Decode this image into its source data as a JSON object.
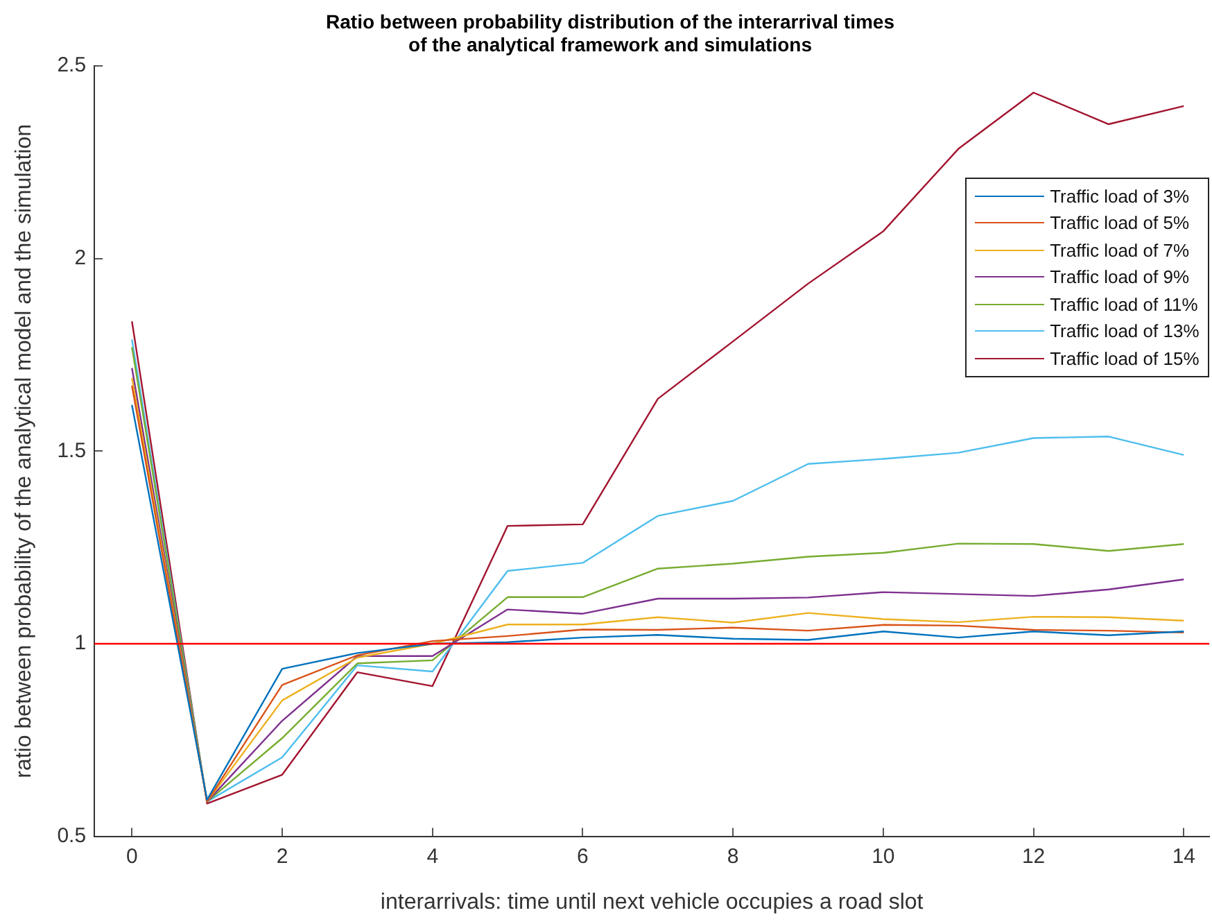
{
  "chart_data": {
    "type": "line",
    "title": [
      "Ratio between probability distribution of the interarrival times",
      "of the analytical framework and simulations"
    ],
    "xlabel": "interarrivals: time until next vehicle occupies a road slot",
    "ylabel": "ratio between probability of the analytical model and the simulation",
    "x": [
      0,
      1,
      2,
      3,
      4,
      5,
      6,
      7,
      8,
      9,
      10,
      11,
      12,
      13,
      14
    ],
    "series": [
      {
        "name": "Traffic load of 3%",
        "color": "#0072bd",
        "values": [
          1.62,
          0.595,
          0.935,
          0.976,
          1.0,
          1.004,
          1.016,
          1.023,
          1.013,
          1.01,
          1.032,
          1.016,
          1.032,
          1.022,
          1.032
        ]
      },
      {
        "name": "Traffic load of 5%",
        "color": "#d95319",
        "values": [
          1.67,
          0.59,
          0.893,
          0.97,
          1.007,
          1.02,
          1.037,
          1.036,
          1.042,
          1.034,
          1.049,
          1.047,
          1.036,
          1.034,
          1.029
        ]
      },
      {
        "name": "Traffic load of 7%",
        "color": "#edb120",
        "values": [
          1.69,
          0.59,
          0.853,
          0.964,
          1.0,
          1.05,
          1.05,
          1.069,
          1.055,
          1.08,
          1.064,
          1.056,
          1.07,
          1.069,
          1.06
        ]
      },
      {
        "name": "Traffic load of 9%",
        "color": "#7e2f8e",
        "values": [
          1.716,
          0.59,
          0.8,
          0.968,
          0.968,
          1.089,
          1.078,
          1.117,
          1.117,
          1.12,
          1.134,
          1.129,
          1.124,
          1.141,
          1.167
        ]
      },
      {
        "name": "Traffic load of 11%",
        "color": "#77ac30",
        "values": [
          1.77,
          0.59,
          0.755,
          0.949,
          0.957,
          1.121,
          1.121,
          1.195,
          1.208,
          1.226,
          1.236,
          1.26,
          1.259,
          1.241,
          1.259
        ]
      },
      {
        "name": "Traffic load of 13%",
        "color": "#4dbeee",
        "values": [
          1.79,
          0.59,
          0.705,
          0.944,
          0.928,
          1.189,
          1.21,
          1.332,
          1.371,
          1.467,
          1.48,
          1.496,
          1.534,
          1.538,
          1.49
        ]
      },
      {
        "name": "Traffic load of 15%",
        "color": "#a2142f",
        "values": [
          1.837,
          0.585,
          0.66,
          0.926,
          0.89,
          1.306,
          1.31,
          1.636,
          1.785,
          1.935,
          2.071,
          2.285,
          2.431,
          2.349,
          2.396
        ]
      }
    ],
    "xlim": [
      -0.5,
      14.34
    ],
    "ylim": [
      0.5,
      2.5
    ],
    "xticks": [
      0,
      2,
      4,
      6,
      8,
      10,
      12,
      14
    ],
    "yticks": [
      0.5,
      1,
      1.5,
      2,
      2.5
    ],
    "ref_lines": [
      {
        "axis": "y",
        "value": 1,
        "color": "#ff0000"
      }
    ],
    "legend": "top right",
    "line_style": "solid",
    "marker": "none"
  }
}
